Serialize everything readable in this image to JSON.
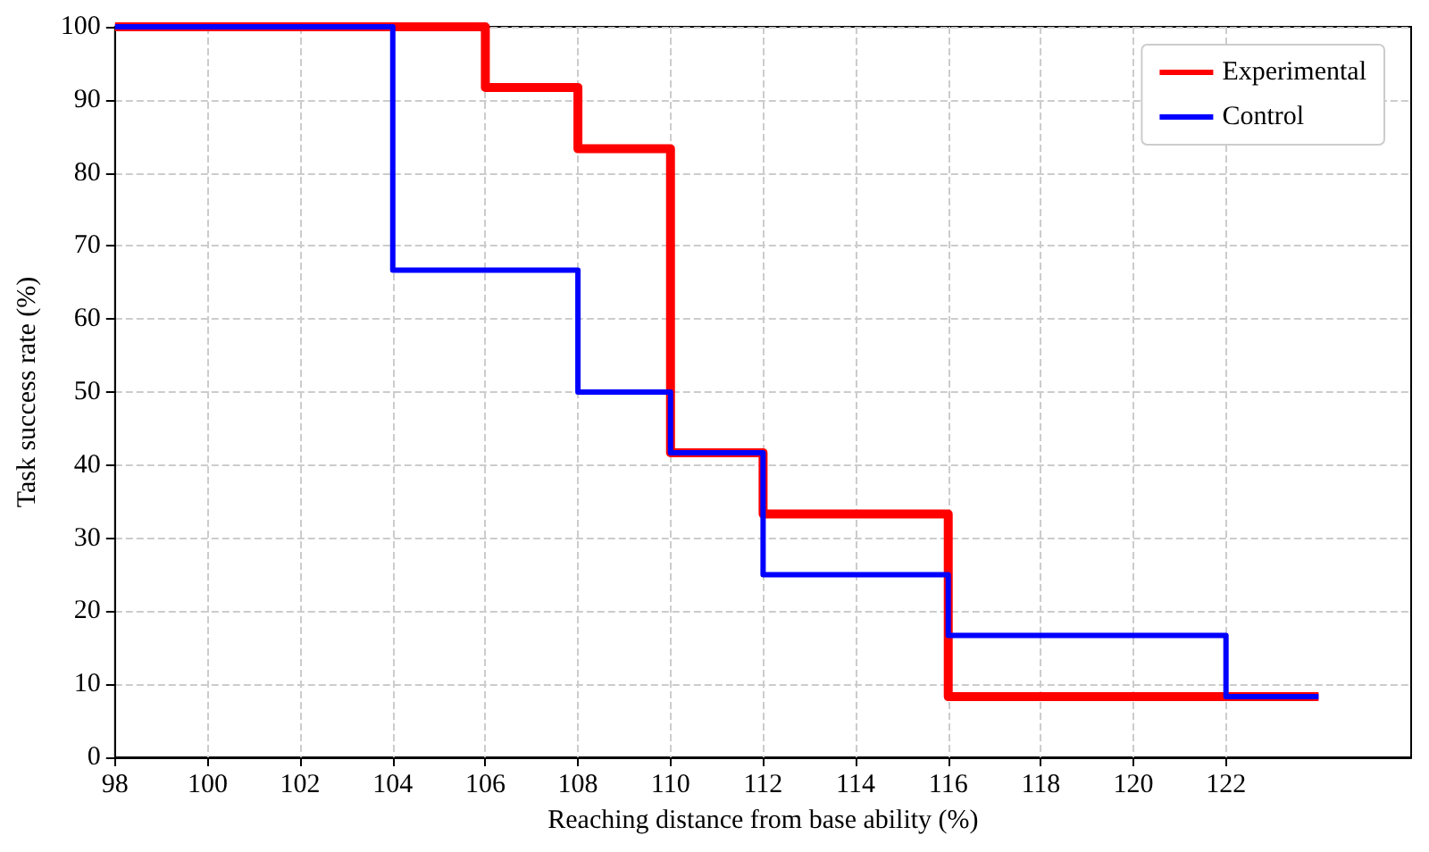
{
  "chart_data": {
    "type": "step",
    "xlabel": "Reaching distance from base ability (%)",
    "ylabel": "Task success rate (%)",
    "series": [
      {
        "name": "Experimental",
        "color": "#ff0000",
        "x": [
          98,
          106,
          108,
          110,
          112,
          116,
          124
        ],
        "values": [
          100,
          91.7,
          83.3,
          41.7,
          33.3,
          8.3,
          8.3
        ]
      },
      {
        "name": "Control",
        "color": "#0000ff",
        "x": [
          98,
          104,
          108,
          110,
          112,
          116,
          122,
          124
        ],
        "values": [
          100,
          66.7,
          50,
          41.7,
          25,
          16.7,
          8.3,
          8.3
        ]
      }
    ],
    "xlim": [
      98,
      126
    ],
    "xticks": [
      98,
      100,
      102,
      104,
      106,
      108,
      110,
      112,
      114,
      116,
      118,
      120,
      122
    ],
    "ylim": [
      0,
      100
    ],
    "yticks": [
      0,
      10,
      20,
      30,
      40,
      50,
      60,
      70,
      80,
      90,
      100
    ],
    "grid": true,
    "legend": "top right",
    "line_style": "solid",
    "marker": "none"
  }
}
